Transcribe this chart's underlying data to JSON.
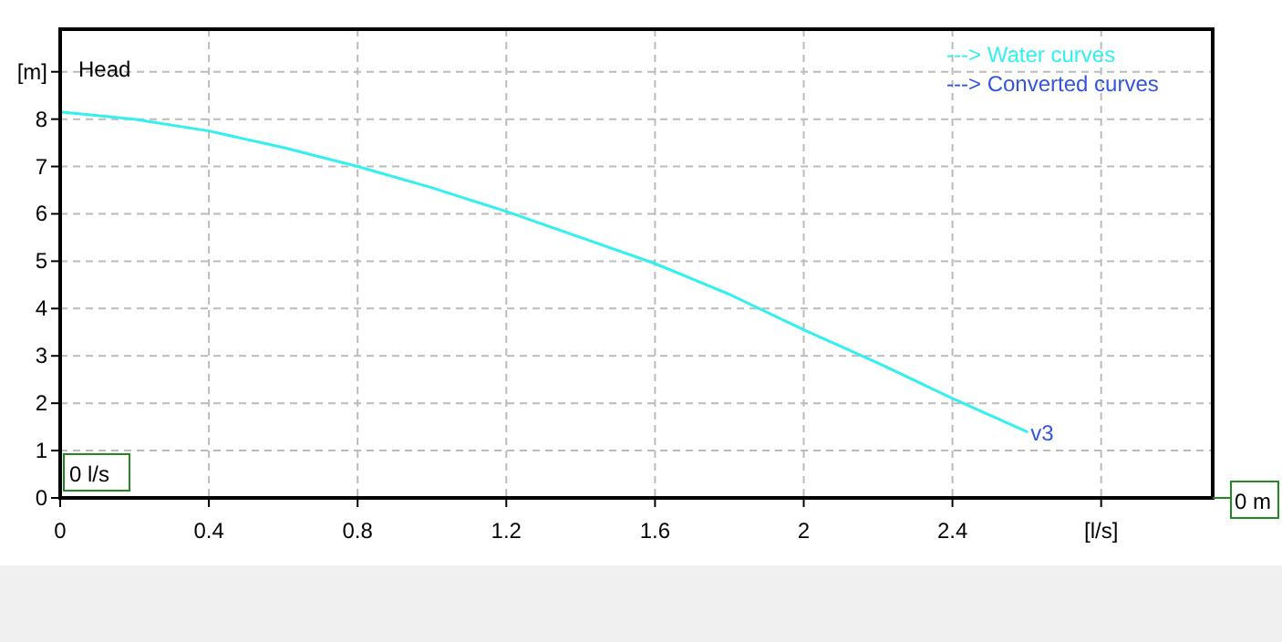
{
  "chart_data": {
    "type": "line",
    "x": [
      0,
      0.2,
      0.4,
      0.6,
      0.8,
      1.0,
      1.2,
      1.4,
      1.6,
      1.8,
      2.0,
      2.2,
      2.4,
      2.6
    ],
    "series": [
      {
        "name": "---> Water curves",
        "color": "#33f0f0",
        "values": [
          8.15,
          8.0,
          7.75,
          7.4,
          7.0,
          6.55,
          6.05,
          5.5,
          4.95,
          4.3,
          3.55,
          2.85,
          2.1,
          1.4
        ]
      }
    ],
    "xlim": [
      0,
      3.1
    ],
    "xticks": [
      0,
      0.4,
      0.8,
      1.2,
      1.6,
      2,
      2.4,
      {
        "value": 2.8,
        "label": "[l/s]"
      }
    ],
    "ylim": [
      0,
      9.9
    ],
    "yticks": [
      0,
      1,
      2,
      3,
      4,
      5,
      6,
      7,
      8,
      {
        "value": 9,
        "label": "[m]"
      }
    ],
    "grid": true,
    "legend": "top right",
    "marker": "none",
    "line_style": "solid",
    "annotations": [
      "Head",
      "---> Converted curves",
      {
        "text": "v3",
        "x": 2.6,
        "y": 1.4
      },
      "0 l/s",
      "0 m"
    ]
  }
}
